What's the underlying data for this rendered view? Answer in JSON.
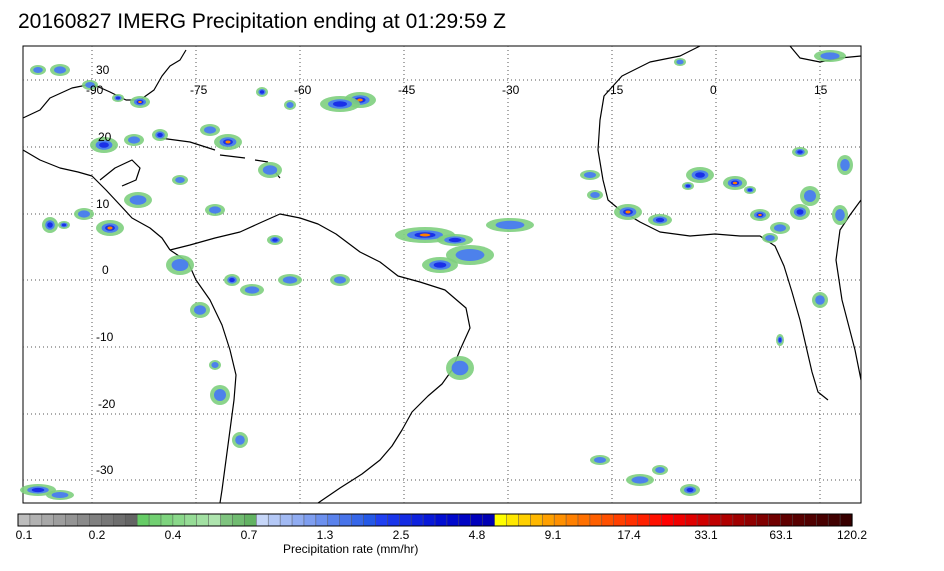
{
  "title": "20160827 IMERG Precipitation ending at 01:29:59 Z",
  "map": {
    "lon_labels": [
      "-90",
      "-75",
      "-60",
      "-45",
      "-30",
      "-15",
      "0",
      "15"
    ],
    "lat_labels": [
      "30",
      "20",
      "10",
      "0",
      "-10",
      "-20",
      "-30"
    ]
  },
  "colorbar": {
    "label": "Precipitation rate (mm/hr)",
    "tick_labels": [
      "0.1",
      "0.2",
      "0.4",
      "0.7",
      "1.3",
      "2.5",
      "4.8",
      "9.1",
      "17.4",
      "33.1",
      "63.1",
      "120.2"
    ],
    "colors": [
      "#bdbdbd",
      "#b2b2b2",
      "#a8a8a8",
      "#9e9e9e",
      "#949494",
      "#8a8a8a",
      "#808080",
      "#777777",
      "#6e6e6e",
      "#646464",
      "#66cc66",
      "#72d072",
      "#7ed47e",
      "#8ad88a",
      "#96dc96",
      "#a2e0a2",
      "#aee4ae",
      "#7fc47f",
      "#70bb70",
      "#62b262",
      "#c6d6f8",
      "#b4c8f6",
      "#a2baf4",
      "#90acf2",
      "#7e9ef0",
      "#6c90ee",
      "#5a82ec",
      "#4874ea",
      "#3666e8",
      "#2458e6",
      "#2040f0",
      "#1a36ea",
      "#142ce4",
      "#0e22de",
      "#0818d8",
      "#020ed2",
      "#0008cc",
      "#0004c4",
      "#0000bc",
      "#0000b4",
      "#ffff00",
      "#ffe800",
      "#ffd000",
      "#ffb800",
      "#ffa000",
      "#ff9000",
      "#ff8000",
      "#ff7000",
      "#ff6000",
      "#ff5000",
      "#ff4000",
      "#ff3000",
      "#ff2000",
      "#ff1000",
      "#ff0000",
      "#f00000",
      "#e00000",
      "#d00000",
      "#c00000",
      "#b00000",
      "#a00000",
      "#900000",
      "#800000",
      "#700000",
      "#600000",
      "#580000",
      "#500000",
      "#480000",
      "#400000",
      "#380000"
    ]
  }
}
